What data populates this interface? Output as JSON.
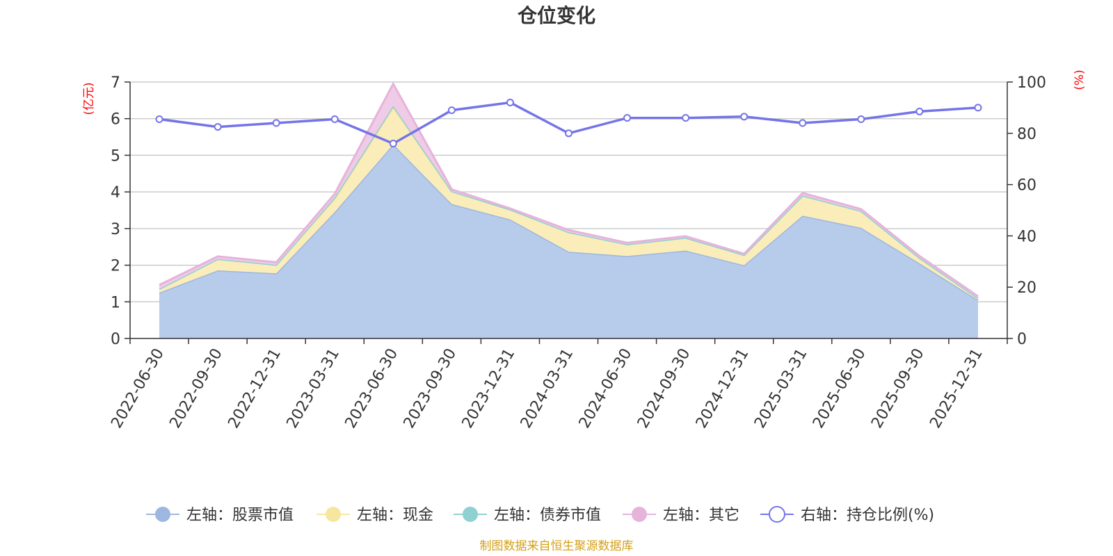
{
  "chart_data": {
    "type": "area",
    "title": "仓位变化",
    "left_axis": {
      "unit_label": "(亿元)",
      "ylim": [
        0,
        7
      ],
      "ticks": [
        0,
        1,
        2,
        3,
        4,
        5,
        6,
        7
      ]
    },
    "right_axis": {
      "unit_label": "(%)",
      "ylim": [
        0,
        100
      ],
      "ticks": [
        0,
        20,
        40,
        60,
        80,
        100
      ]
    },
    "categories": [
      "2022-06-30",
      "2022-09-30",
      "2022-12-31",
      "2023-03-31",
      "2023-06-30",
      "2023-09-30",
      "2023-12-31",
      "2024-03-31",
      "2024-06-30",
      "2024-09-30",
      "2024-12-31",
      "2025-03-31",
      "2025-06-30",
      "2025-09-30",
      "2025-12-31"
    ],
    "stacked": true,
    "series": [
      {
        "name": "左轴：股票市值",
        "axis": "left",
        "color": "#9db7e0",
        "fill": "#b7cbea",
        "values": [
          1.25,
          1.86,
          1.78,
          3.45,
          5.3,
          3.67,
          3.25,
          2.37,
          2.25,
          2.4,
          2.0,
          3.35,
          3.02,
          2.05,
          1.05
        ]
      },
      {
        "name": "左轴：现金",
        "axis": "left",
        "color": "#f7e6a0",
        "fill": "#faedba",
        "values": [
          0.1,
          0.31,
          0.23,
          0.35,
          1.0,
          0.35,
          0.27,
          0.53,
          0.32,
          0.35,
          0.28,
          0.55,
          0.46,
          0.15,
          0.05
        ]
      },
      {
        "name": "左轴：债券市值",
        "axis": "left",
        "color": "#8fd0d0",
        "fill": "#b4dede",
        "values": [
          0.0,
          0.0,
          0.0,
          0.05,
          0.05,
          0.0,
          0.0,
          0.0,
          0.0,
          0.0,
          0.0,
          0.0,
          0.0,
          0.0,
          0.0
        ]
      },
      {
        "name": "左轴：其它",
        "axis": "left",
        "color": "#e6b3db",
        "fill": "#efcbe6",
        "values": [
          0.11,
          0.07,
          0.07,
          0.1,
          0.6,
          0.05,
          0.03,
          0.06,
          0.04,
          0.04,
          0.03,
          0.07,
          0.05,
          0.05,
          0.05
        ]
      }
    ],
    "line_series": {
      "name": "右轴：持仓比例(%)",
      "axis": "right",
      "color": "#7474e8",
      "values": [
        85.5,
        82.5,
        84.0,
        85.5,
        76.0,
        89.0,
        92.0,
        80.0,
        86.0,
        86.0,
        86.5,
        84.0,
        85.5,
        88.5,
        90.0
      ]
    },
    "grid": true,
    "legend_position": "bottom"
  },
  "source_note": "制图数据来自恒生聚源数据库"
}
